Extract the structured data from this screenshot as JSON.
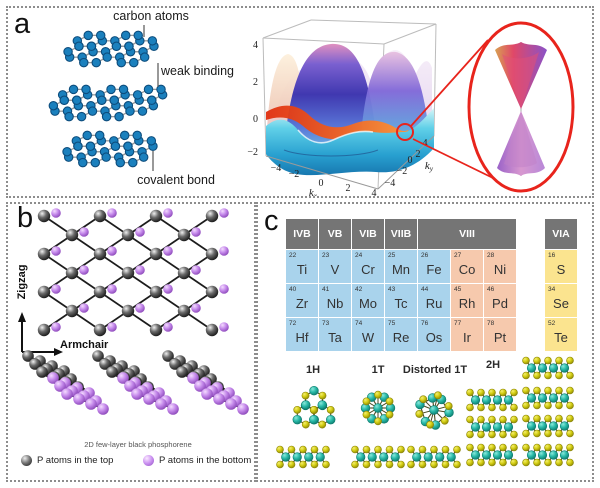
{
  "panels": {
    "a": {
      "letter": "a",
      "labels": {
        "carbon_atoms": "carbon atoms",
        "weak_binding": "weak binding",
        "covalent_bond": "covalent bond"
      },
      "plot": {
        "z_ticks": [
          "4",
          "2",
          "0",
          "−2"
        ],
        "x_ticks": [
          "−4",
          "−2",
          "0",
          "2",
          "4"
        ],
        "y_ticks": [
          "4",
          "2",
          "0",
          "−2",
          "−4"
        ],
        "x_label_base": "k",
        "x_label_sub": "x",
        "y_label_base": "k",
        "y_label_sub": "y"
      }
    },
    "b": {
      "letter": "b",
      "axis_vertical": "Zigzag",
      "axis_horizontal": "Armchair",
      "caption": "2D few-layer black phosphorene",
      "legend": [
        {
          "label": "P atoms in the top"
        },
        {
          "label": "P atoms in the bottom"
        }
      ]
    },
    "c": {
      "letter": "c",
      "periodic_table": {
        "headers": [
          {
            "t": "IVB",
            "span": 1
          },
          {
            "t": "VB",
            "span": 1
          },
          {
            "t": "VIB",
            "span": 1
          },
          {
            "t": "VIIB",
            "span": 1
          },
          {
            "t": "VIII",
            "span": 3
          }
        ],
        "via_header": "VIA",
        "rows": [
          [
            {
              "n": "22",
              "s": "Ti"
            },
            {
              "n": "23",
              "s": "V"
            },
            {
              "n": "24",
              "s": "Cr"
            },
            {
              "n": "25",
              "s": "Mn"
            },
            {
              "n": "26",
              "s": "Fe"
            },
            {
              "n": "27",
              "s": "Co"
            },
            {
              "n": "28",
              "s": "Ni"
            }
          ],
          [
            {
              "n": "40",
              "s": "Zr"
            },
            {
              "n": "41",
              "s": "Nb"
            },
            {
              "n": "42",
              "s": "Mo"
            },
            {
              "n": "43",
              "s": "Tc"
            },
            {
              "n": "44",
              "s": "Ru"
            },
            {
              "n": "45",
              "s": "Rh"
            },
            {
              "n": "46",
              "s": "Pd"
            }
          ],
          [
            {
              "n": "72",
              "s": "Hf"
            },
            {
              "n": "73",
              "s": "Ta"
            },
            {
              "n": "74",
              "s": "W"
            },
            {
              "n": "75",
              "s": "Re"
            },
            {
              "n": "76",
              "s": "Os"
            },
            {
              "n": "77",
              "s": "Ir"
            },
            {
              "n": "78",
              "s": "Pt"
            }
          ]
        ],
        "chalcogens": [
          {
            "n": "16",
            "s": "S"
          },
          {
            "n": "34",
            "s": "Se"
          },
          {
            "n": "52",
            "s": "Te"
          }
        ]
      },
      "structure_labels": [
        "1H",
        "1T",
        "Distorted 1T",
        "2H"
      ]
    }
  },
  "colors": {
    "carbon_atom": "#1b80bd",
    "carbon_atom_edge": "#0d4d7d",
    "bond_gray": "#999999",
    "p_bond": "#1c1c1c",
    "accent_red": "#e8241c",
    "table": {
      "header_bg": "#757575",
      "header_text": "#ffffff",
      "transition_bg": "#a9d3ec",
      "late_bg": "#f6c9ad",
      "chalcogen_bg": "#fbe48f",
      "text": "#333333"
    },
    "tmd": {
      "metal": "#28b9a8",
      "metal_edge": "#0e7c6e",
      "chalcogen": "#d2cc10",
      "chalcogen_edge": "#8a8408",
      "bond": "#4a4a20"
    }
  }
}
